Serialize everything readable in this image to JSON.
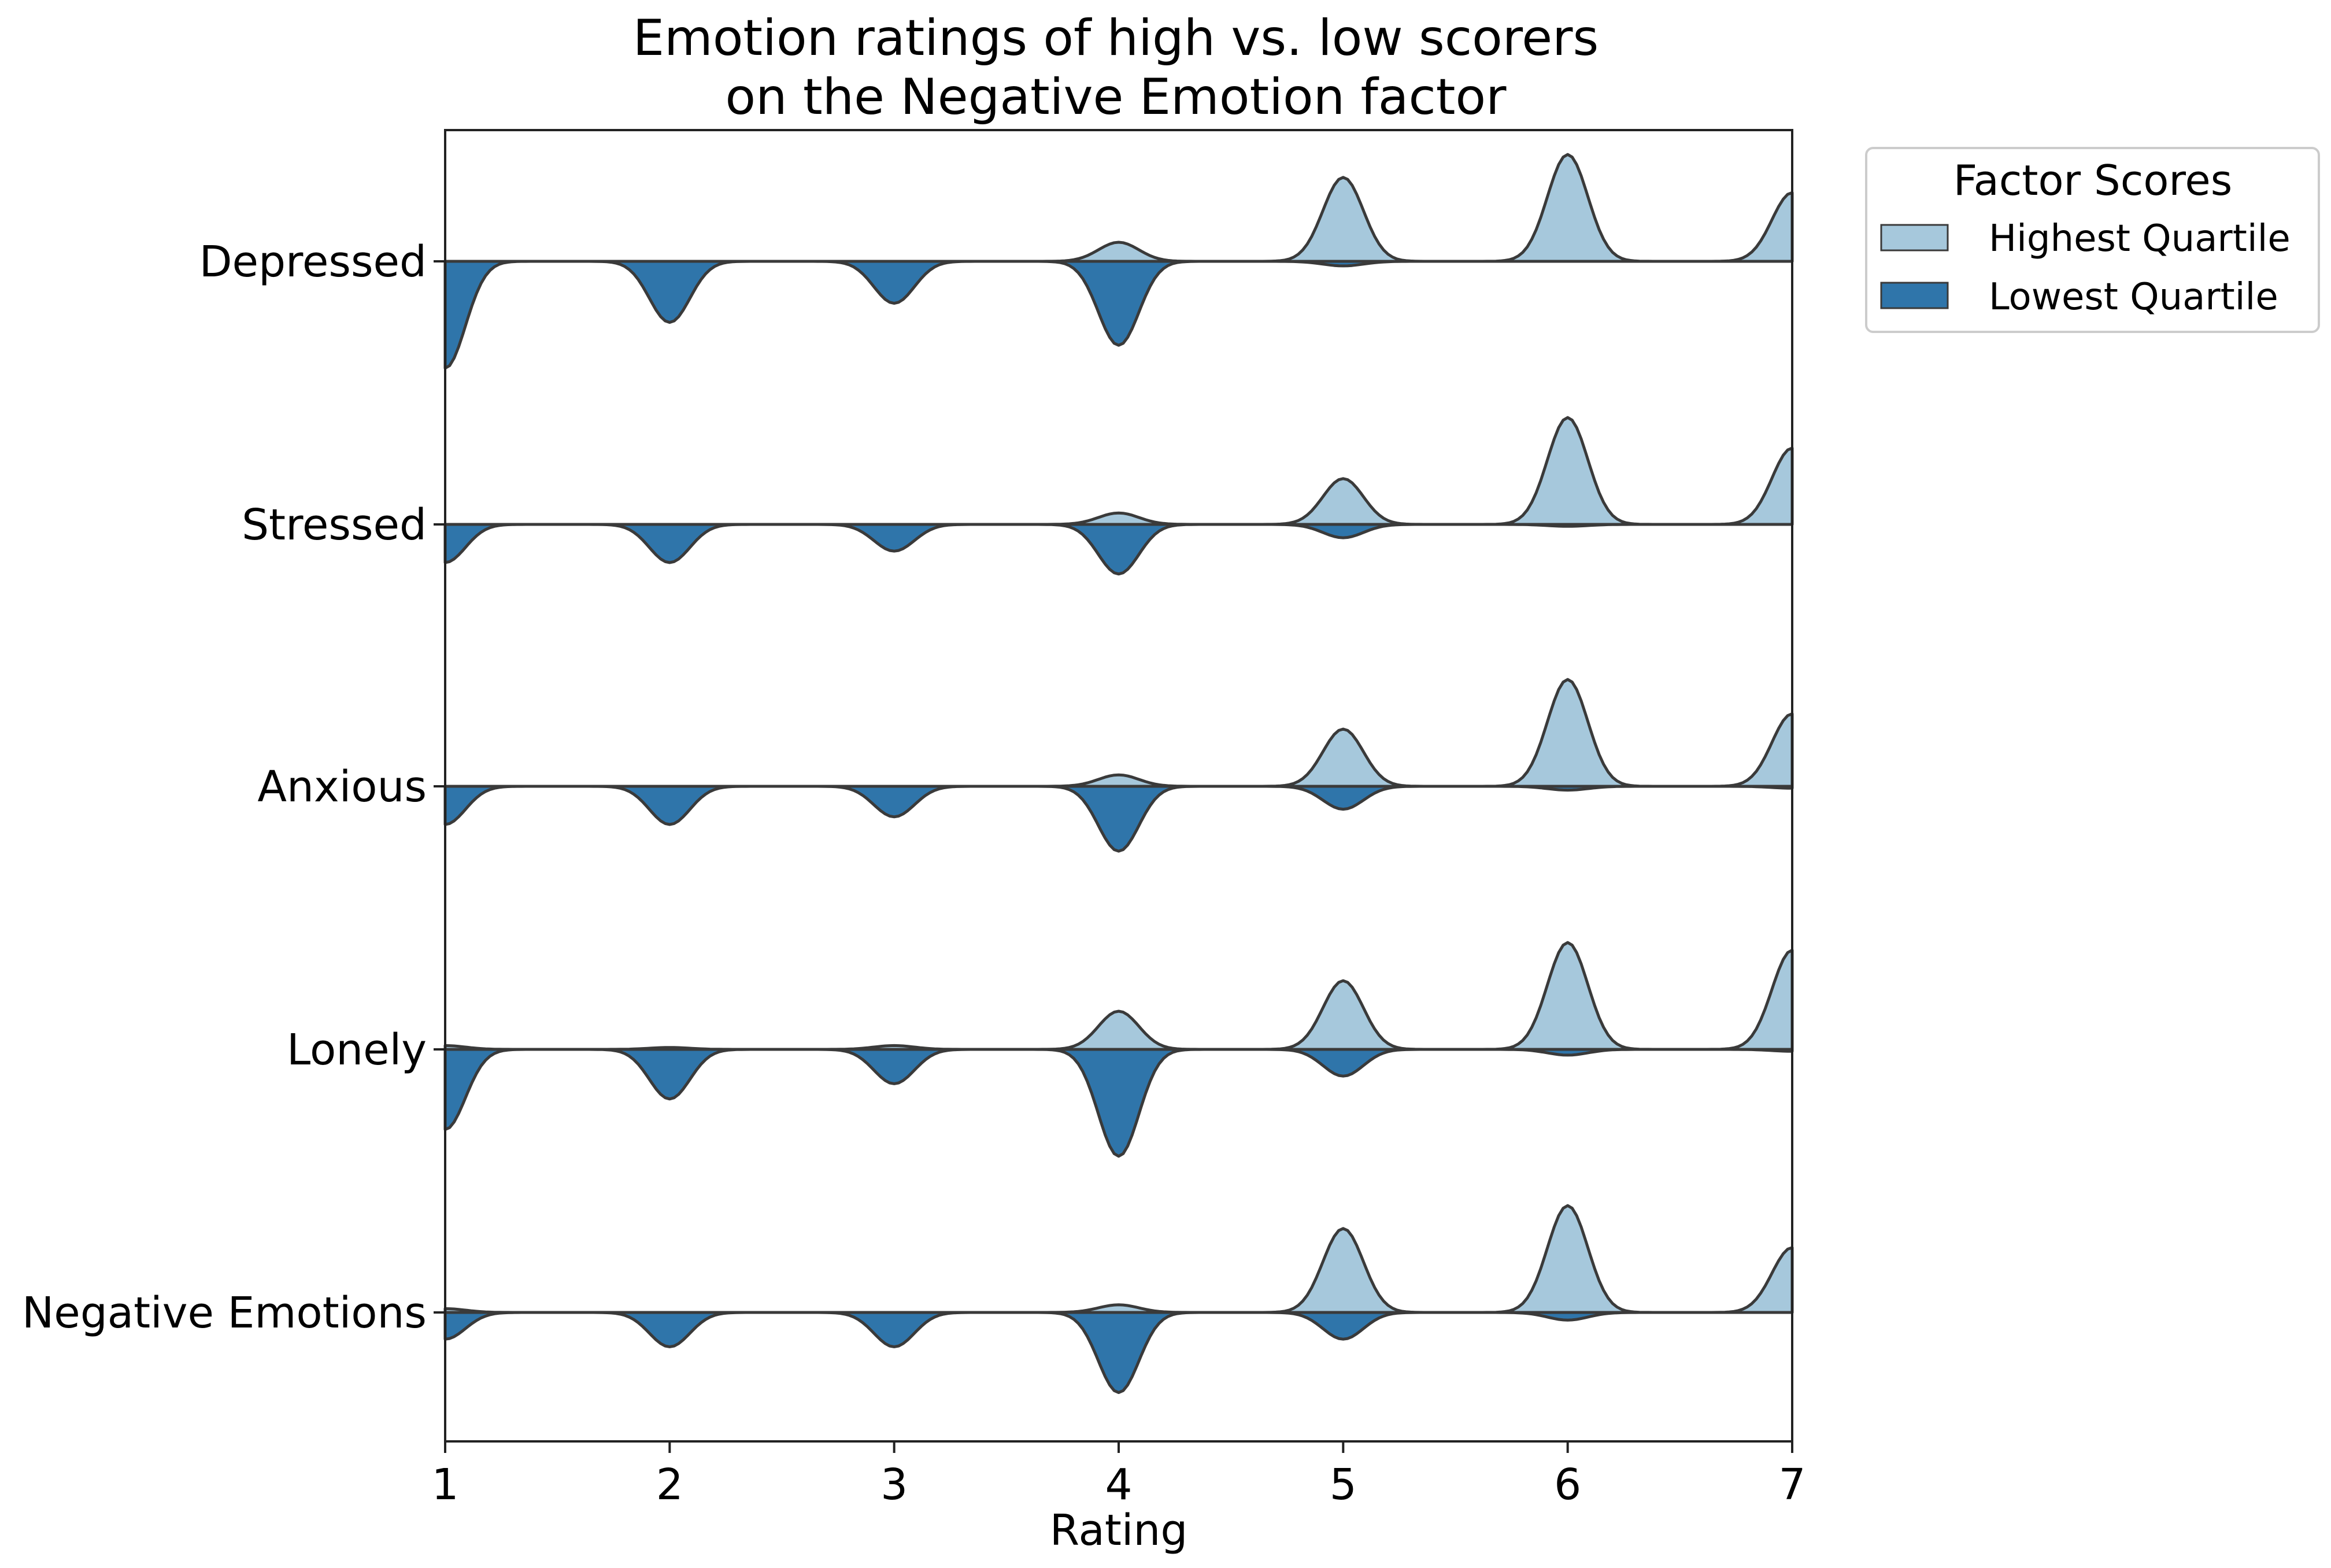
{
  "chart_data": {
    "type": "violin",
    "title": [
      "Emotion ratings of high vs. low scorers",
      "on the Negative Emotion factor"
    ],
    "xlabel": "Rating",
    "ylabel": "",
    "x_ticks": [
      1,
      2,
      3,
      4,
      5,
      6,
      7
    ],
    "xlim": [
      1,
      7
    ],
    "categories": [
      "Depressed",
      "Stressed",
      "Anxious",
      "Lonely",
      "Negative Emotions"
    ],
    "legend": {
      "title": "Factor Scores",
      "placement": "outside-top-right",
      "entries": [
        "Highest Quartile",
        "Lowest Quartile"
      ]
    },
    "colors": {
      "Highest Quartile": "#a6c8dc",
      "Lowest Quartile": "#2f75aa",
      "outline": "#3a3a3a"
    },
    "grid": false,
    "series": [
      {
        "name": "Highest Quartile",
        "side": "upper",
        "rating_proportions": {
          "Depressed": [
            0.0,
            0.0,
            0.0,
            0.05,
            0.22,
            0.28,
            0.18
          ],
          "Stressed": [
            0.0,
            0.0,
            0.0,
            0.03,
            0.12,
            0.28,
            0.2
          ],
          "Anxious": [
            0.0,
            0.0,
            0.0,
            0.03,
            0.15,
            0.28,
            0.19
          ],
          "Lonely": [
            0.01,
            0.005,
            0.01,
            0.1,
            0.18,
            0.28,
            0.26
          ],
          "Negative Emotions": [
            0.01,
            0.0,
            0.0,
            0.02,
            0.22,
            0.28,
            0.17
          ]
        }
      },
      {
        "name": "Lowest Quartile",
        "side": "lower",
        "rating_proportions": {
          "Depressed": [
            0.28,
            0.16,
            0.11,
            0.22,
            0.012,
            0.0,
            0.0
          ],
          "Stressed": [
            0.1,
            0.1,
            0.07,
            0.13,
            0.035,
            0.005,
            0.0
          ],
          "Anxious": [
            0.1,
            0.1,
            0.08,
            0.17,
            0.06,
            0.01,
            0.005
          ],
          "Lonely": [
            0.21,
            0.13,
            0.09,
            0.28,
            0.07,
            0.015,
            0.005
          ],
          "Negative Emotions": [
            0.07,
            0.09,
            0.09,
            0.21,
            0.07,
            0.02,
            0.0
          ]
        }
      }
    ]
  }
}
